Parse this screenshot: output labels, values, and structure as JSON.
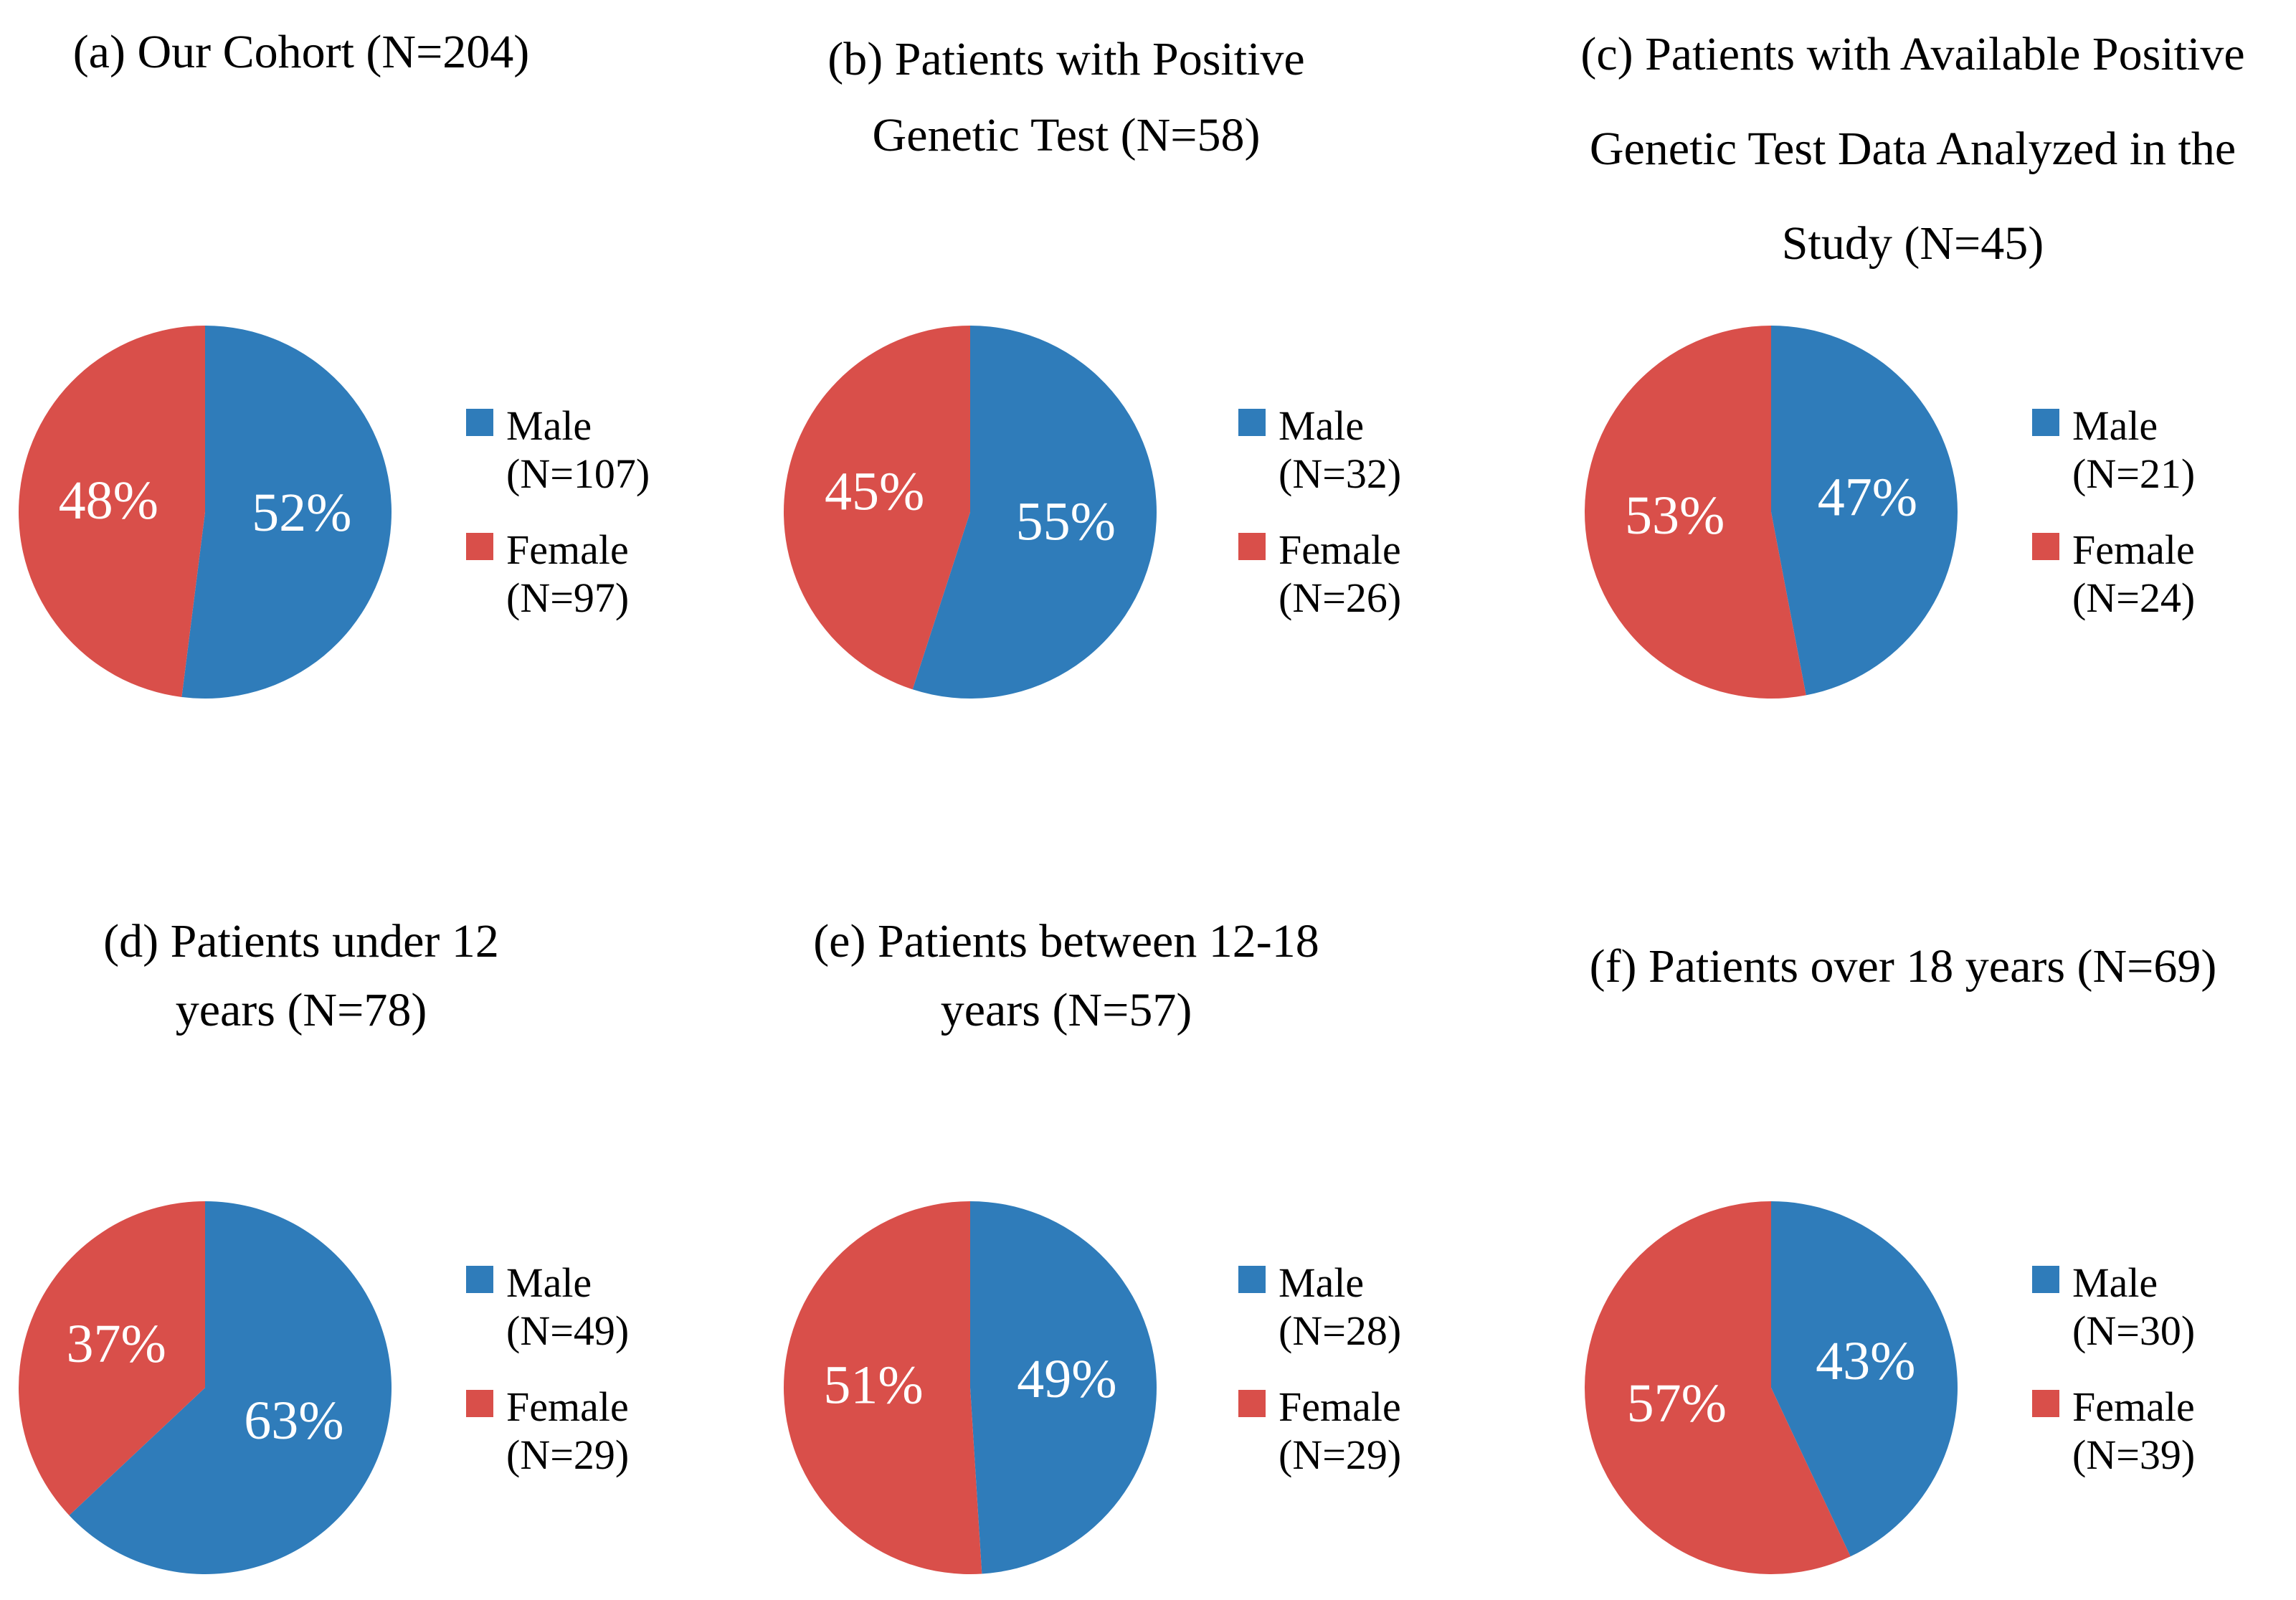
{
  "figure": {
    "background": "#ffffff",
    "colors": {
      "male": "#2F7CBA",
      "female": "#D94F4A",
      "percent_label_text": "#ffffff",
      "title_text": "#000000"
    }
  },
  "chart_data": [
    {
      "type": "pie",
      "panel_id": "a",
      "title": "(a) Our Cohort (N=204)",
      "title_lines": [
        "(a) Our Cohort (N=204)"
      ],
      "total_n": 204,
      "start_angle": "top",
      "direction": "clockwise",
      "legend_position": "right",
      "slices": [
        {
          "label": "Male",
          "n": 107,
          "pct": 52,
          "pct_label": "52%",
          "legend_label": "Male",
          "legend_count": "(N=107)",
          "color_key": "male"
        },
        {
          "label": "Female",
          "n": 97,
          "pct": 48,
          "pct_label": "48%",
          "legend_label": "Female",
          "legend_count": "(N=97)",
          "color_key": "female"
        }
      ]
    },
    {
      "type": "pie",
      "panel_id": "b",
      "title": "(b) Patients with Positive Genetic Test (N=58)",
      "title_lines": [
        "(b) Patients with Positive",
        "Genetic Test (N=58)"
      ],
      "total_n": 58,
      "start_angle": "top",
      "direction": "clockwise",
      "legend_position": "right",
      "slices": [
        {
          "label": "Male",
          "n": 32,
          "pct": 55,
          "pct_label": "55%",
          "legend_label": "Male",
          "legend_count": "(N=32)",
          "color_key": "male"
        },
        {
          "label": "Female",
          "n": 26,
          "pct": 45,
          "pct_label": "45%",
          "legend_label": "Female",
          "legend_count": "(N=26)",
          "color_key": "female"
        }
      ]
    },
    {
      "type": "pie",
      "panel_id": "c",
      "title": "(c) Patients with Available Positive Genetic Test Data Analyzed in the Study (N=45)",
      "title_lines": [
        "(c) Patients with Available Positive",
        "Genetic Test Data Analyzed in the",
        "Study (N=45)"
      ],
      "total_n": 45,
      "start_angle": "top",
      "direction": "clockwise",
      "legend_position": "right",
      "slices": [
        {
          "label": "Male",
          "n": 21,
          "pct": 47,
          "pct_label": "47%",
          "legend_label": "Male",
          "legend_count": "(N=21)",
          "color_key": "male"
        },
        {
          "label": "Female",
          "n": 24,
          "pct": 53,
          "pct_label": "53%",
          "legend_label": "Female",
          "legend_count": "(N=24)",
          "color_key": "female"
        }
      ]
    },
    {
      "type": "pie",
      "panel_id": "d",
      "title": "(d) Patients under 12 years (N=78)",
      "title_lines": [
        "(d) Patients under 12",
        "years (N=78)"
      ],
      "total_n": 78,
      "start_angle": "top",
      "direction": "clockwise",
      "legend_position": "right",
      "slices": [
        {
          "label": "Male",
          "n": 49,
          "pct": 63,
          "pct_label": "63%",
          "legend_label": "Male",
          "legend_count": "(N=49)",
          "color_key": "male"
        },
        {
          "label": "Female",
          "n": 29,
          "pct": 37,
          "pct_label": "37%",
          "legend_label": "Female",
          "legend_count": "(N=29)",
          "color_key": "female"
        }
      ]
    },
    {
      "type": "pie",
      "panel_id": "e",
      "title": "(e) Patients between 12-18 years (N=57)",
      "title_lines": [
        "(e) Patients between 12-18",
        "years (N=57)"
      ],
      "total_n": 57,
      "start_angle": "top",
      "direction": "clockwise",
      "legend_position": "right",
      "slices": [
        {
          "label": "Male",
          "n": 28,
          "pct": 49,
          "pct_label": "49%",
          "legend_label": "Male",
          "legend_count": "(N=28)",
          "color_key": "male"
        },
        {
          "label": "Female",
          "n": 29,
          "pct": 51,
          "pct_label": "51%",
          "legend_label": "Female",
          "legend_count": "(N=29)",
          "color_key": "female"
        }
      ]
    },
    {
      "type": "pie",
      "panel_id": "f",
      "title": "(f) Patients over 18 years (N=69)",
      "title_lines": [
        "(f) Patients over 18 years (N=69)"
      ],
      "total_n": 69,
      "start_angle": "top",
      "direction": "clockwise",
      "legend_position": "right",
      "slices": [
        {
          "label": "Male",
          "n": 30,
          "pct": 43,
          "pct_label": "43%",
          "legend_label": "Male",
          "legend_count": "(N=30)",
          "color_key": "male"
        },
        {
          "label": "Female",
          "n": 39,
          "pct": 57,
          "pct_label": "57%",
          "legend_label": "Female",
          "legend_count": "(N=39)",
          "color_key": "female"
        }
      ]
    }
  ]
}
